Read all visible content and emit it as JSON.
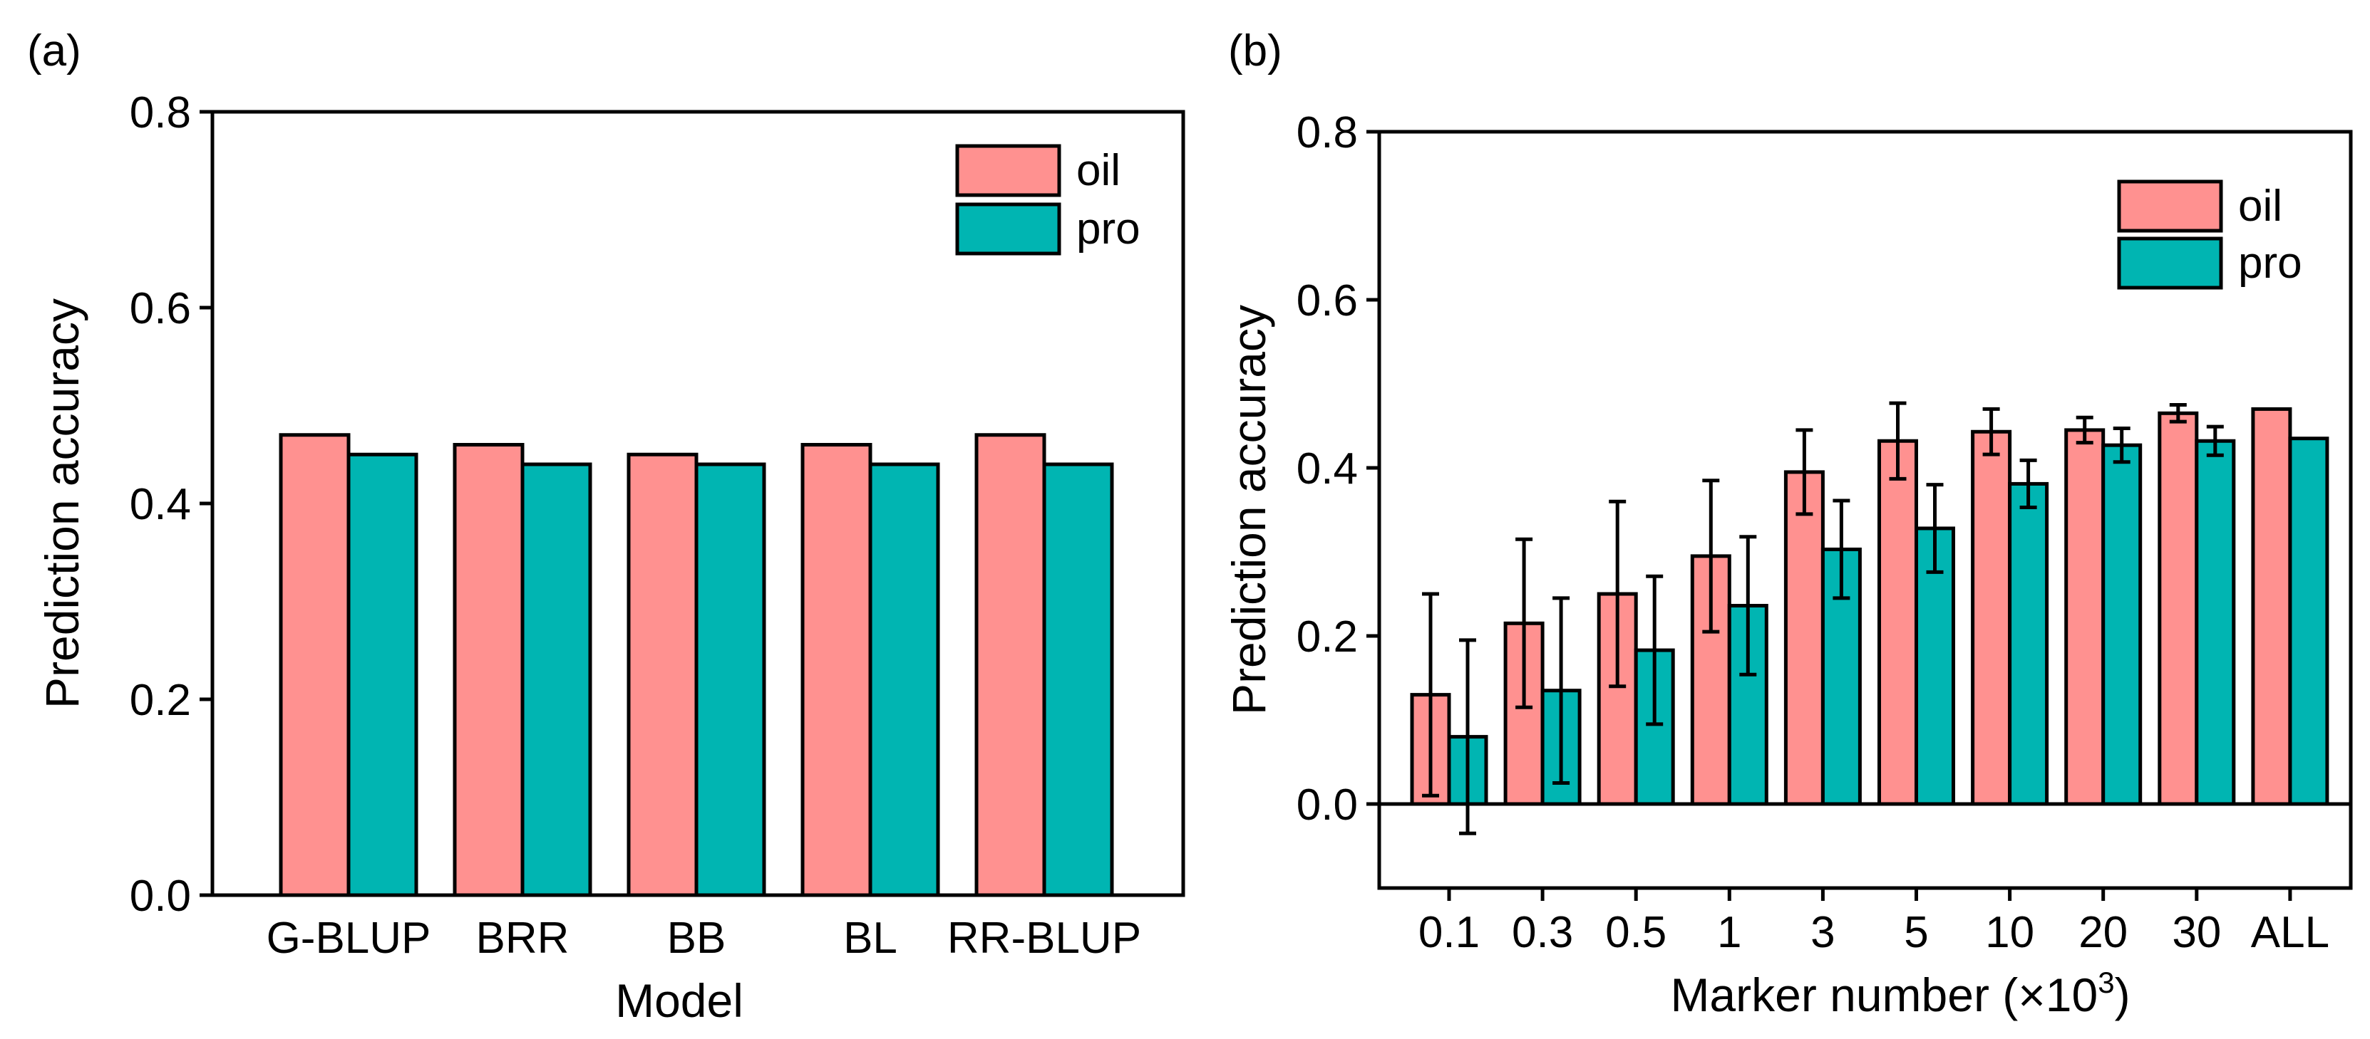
{
  "chart_data": [
    {
      "panel_label": "(a)",
      "type": "bar",
      "categories": [
        "G-BLUP",
        "BRR",
        "BB",
        "BL",
        "RR-BLUP"
      ],
      "series": [
        {
          "name": "oil",
          "color": "#FF9190",
          "values": [
            0.47,
            0.46,
            0.45,
            0.46,
            0.47
          ]
        },
        {
          "name": "pro",
          "color": "#00B5B2",
          "values": [
            0.45,
            0.44,
            0.44,
            0.44,
            0.44
          ]
        }
      ],
      "xlabel": "Model",
      "ylabel": "Prediction accuracy",
      "ylim": [
        0.0,
        0.8
      ],
      "yticks": [
        0.0,
        0.2,
        0.4,
        0.6,
        0.8
      ],
      "ytick_labels": [
        "0.0",
        "0.2",
        "0.4",
        "0.6",
        "0.8"
      ],
      "grid": false,
      "legend_position": "top-right"
    },
    {
      "panel_label": "(b)",
      "type": "bar",
      "categories": [
        "0.1",
        "0.3",
        "0.5",
        "1",
        "3",
        "5",
        "10",
        "20",
        "30",
        "ALL"
      ],
      "series": [
        {
          "name": "oil",
          "color": "#FF9190",
          "values": [
            0.13,
            0.215,
            0.25,
            0.295,
            0.395,
            0.432,
            0.443,
            0.445,
            0.465,
            0.47
          ],
          "errors": [
            0.12,
            0.1,
            0.11,
            0.09,
            0.05,
            0.045,
            0.027,
            0.015,
            0.01,
            null
          ]
        },
        {
          "name": "pro",
          "color": "#00B5B2",
          "values": [
            0.08,
            0.135,
            0.183,
            0.236,
            0.303,
            0.328,
            0.381,
            0.427,
            0.432,
            0.435
          ],
          "errors": [
            0.115,
            0.11,
            0.088,
            0.082,
            0.058,
            0.052,
            0.028,
            0.02,
            0.017,
            null
          ]
        }
      ],
      "xlabel": "Marker number (×10",
      "xlabel_superscript": "3",
      "xlabel_suffix": ")",
      "ylabel": "Prediction accuracy",
      "ylim": [
        -0.1,
        0.8
      ],
      "yticks": [
        0.0,
        0.2,
        0.4,
        0.6,
        0.8
      ],
      "ytick_labels": [
        "0.0",
        "0.2",
        "0.4",
        "0.6",
        "0.8"
      ],
      "zero_line": true,
      "grid": false,
      "legend_position": "top-right"
    }
  ]
}
